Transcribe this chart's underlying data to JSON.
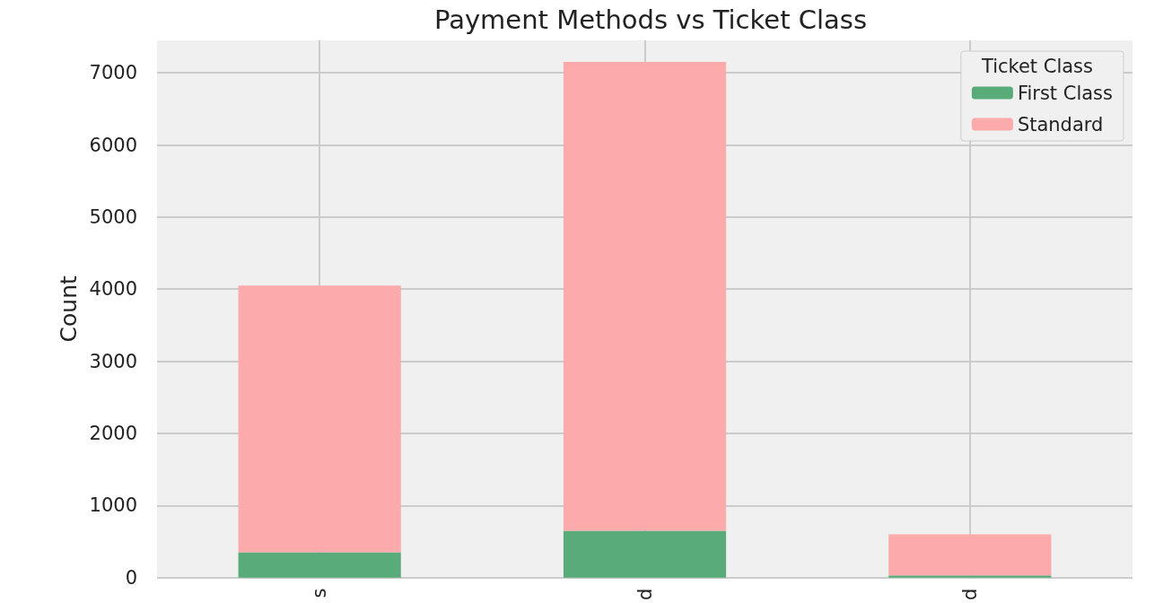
{
  "chart_data": {
    "type": "bar",
    "title": "Payment Methods vs Ticket Class",
    "ylabel": "Count",
    "categories": [
      "s",
      "d",
      "d"
    ],
    "stacked": true,
    "legend_title": "Ticket Class",
    "legend": "top right",
    "grid": true,
    "series": [
      {
        "name": "First Class",
        "color": "#5aab7a",
        "values": [
          350,
          650,
          30
        ]
      },
      {
        "name": "Standard",
        "color": "#fcaaab",
        "values": [
          3700,
          6500,
          570
        ]
      }
    ],
    "ylim": [
      0,
      7450
    ],
    "yticks": [
      0,
      1000,
      2000,
      3000,
      4000,
      5000,
      6000,
      7000
    ]
  }
}
